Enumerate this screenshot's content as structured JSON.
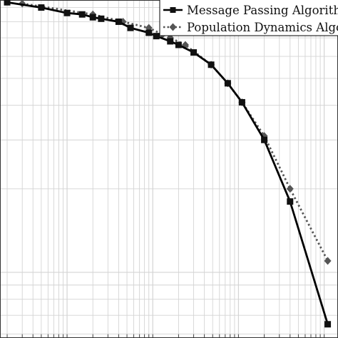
{
  "chart_data": {
    "type": "line",
    "xscale": "log",
    "yscale": "log",
    "grid": true,
    "legend_position": "top-right",
    "series": [
      {
        "name": "Message Passing Algorithm",
        "color": "#000000",
        "linestyle": "solid",
        "marker": "square",
        "points": [
          [
            0.02,
            0.94
          ],
          [
            0.05,
            0.9
          ],
          [
            0.1,
            0.86
          ],
          [
            0.15,
            0.85
          ],
          [
            0.2,
            0.83
          ],
          [
            0.25,
            0.82
          ],
          [
            0.4,
            0.8
          ],
          [
            0.55,
            0.76
          ],
          [
            0.9,
            0.73
          ],
          [
            1.1,
            0.71
          ],
          [
            1.6,
            0.68
          ],
          [
            2.0,
            0.66
          ],
          [
            3.0,
            0.62
          ],
          [
            4.8,
            0.56
          ],
          [
            7.5,
            0.48
          ],
          [
            11.0,
            0.41
          ],
          [
            20.0,
            0.3
          ],
          [
            40.0,
            0.18
          ],
          [
            110.0,
            0.065
          ]
        ]
      },
      {
        "name": "Population Dynamics Algorithm",
        "color": "#555555",
        "linestyle": "dotted",
        "marker": "diamond",
        "points": [
          [
            0.03,
            0.93
          ],
          [
            0.2,
            0.85
          ],
          [
            0.45,
            0.8
          ],
          [
            0.9,
            0.76
          ],
          [
            1.3,
            0.72
          ],
          [
            1.6,
            0.7
          ],
          [
            2.4,
            0.66
          ],
          [
            4.8,
            0.56
          ],
          [
            7.5,
            0.48
          ],
          [
            11.0,
            0.41
          ],
          [
            20.0,
            0.31
          ],
          [
            40.0,
            0.2
          ],
          [
            110.0,
            0.11
          ]
        ]
      }
    ]
  }
}
